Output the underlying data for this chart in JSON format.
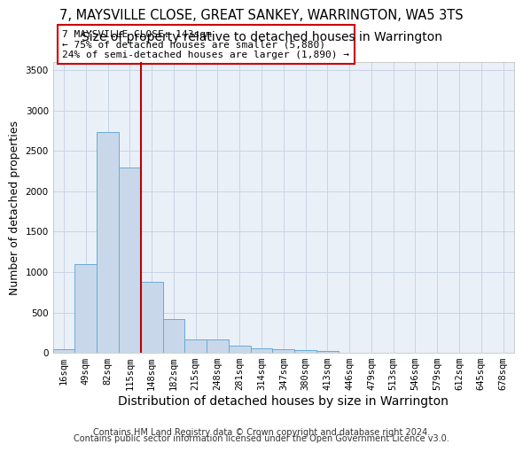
{
  "title_line1": "7, MAYSVILLE CLOSE, GREAT SANKEY, WARRINGTON, WA5 3TS",
  "title_line2": "Size of property relative to detached houses in Warrington",
  "xlabel": "Distribution of detached houses by size in Warrington",
  "ylabel": "Number of detached properties",
  "categories": [
    "16sqm",
    "49sqm",
    "82sqm",
    "115sqm",
    "148sqm",
    "182sqm",
    "215sqm",
    "248sqm",
    "281sqm",
    "314sqm",
    "347sqm",
    "380sqm",
    "413sqm",
    "446sqm",
    "479sqm",
    "513sqm",
    "546sqm",
    "579sqm",
    "612sqm",
    "645sqm",
    "678sqm"
  ],
  "values": [
    50,
    1100,
    2730,
    2290,
    880,
    420,
    165,
    165,
    90,
    55,
    50,
    30,
    20,
    5,
    5,
    5,
    0,
    0,
    0,
    0,
    0
  ],
  "bar_color": "#c8d8ea",
  "bar_edge_color": "#6aaad4",
  "vline_color": "#bb0000",
  "annotation_text": "7 MAYSVILLE CLOSE: 143sqm\n← 75% of detached houses are smaller (5,880)\n24% of semi-detached houses are larger (1,890) →",
  "annotation_box_color": "#cc0000",
  "ylim": [
    0,
    3600
  ],
  "yticks": [
    0,
    500,
    1000,
    1500,
    2000,
    2500,
    3000,
    3500
  ],
  "grid_color": "#c8d4e4",
  "bg_color": "#eaf0f8",
  "footer_line1": "Contains HM Land Registry data © Crown copyright and database right 2024.",
  "footer_line2": "Contains public sector information licensed under the Open Government Licence v3.0.",
  "title_fontsize": 10.5,
  "subtitle_fontsize": 10,
  "ylabel_fontsize": 9,
  "xlabel_fontsize": 10,
  "tick_fontsize": 7.5,
  "annotation_fontsize": 8,
  "footer_fontsize": 7
}
